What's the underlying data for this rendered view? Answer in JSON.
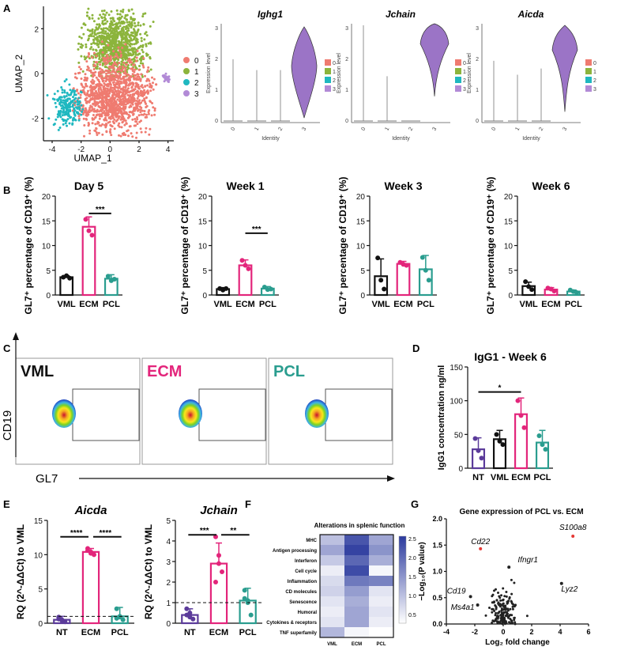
{
  "panels": {
    "a": "A",
    "b": "B",
    "c": "C",
    "d": "D",
    "e": "E",
    "f": "F",
    "g": "G"
  },
  "colors": {
    "vml": "#111111",
    "ecm": "#e3257b",
    "pcl": "#2a9d8f",
    "nt": "#5b3b9a",
    "c0": "#ef7b70",
    "c1": "#8cb43c",
    "c2": "#1fb8c0",
    "c3": "#b28ad6",
    "violet": "#9b74c6"
  },
  "umap": {
    "xlabel": "UMAP_1",
    "ylabel": "UMAP_2",
    "xticks": [
      "-4",
      "-2",
      "0",
      "2",
      "4"
    ],
    "yticks": [
      "2",
      "0",
      "-2"
    ],
    "legend": [
      "0",
      "1",
      "2",
      "3"
    ]
  },
  "violins": [
    {
      "gene": "Ighg1",
      "ylabel": "Expression level",
      "xlabel": "Identity",
      "yticks": [
        "3",
        "2",
        "1",
        "0"
      ],
      "xticks": [
        "0",
        "1",
        "2",
        "3"
      ],
      "legend": [
        "0",
        "1",
        "2",
        "3"
      ]
    },
    {
      "gene": "Jchain",
      "ylabel": "Expression level",
      "xlabel": "Identity",
      "yticks": [
        "3",
        "2",
        "1",
        "0"
      ],
      "xticks": [
        "0",
        "1",
        "2",
        "3"
      ],
      "legend": [
        "0",
        "1",
        "2",
        "3"
      ]
    },
    {
      "gene": "Aicda",
      "ylabel": "Expression level",
      "xlabel": "Identity",
      "yticks": [
        "3",
        "2",
        "1",
        "0"
      ],
      "xticks": [
        "0",
        "1",
        "2",
        "3"
      ],
      "legend": [
        "0",
        "1",
        "2",
        "3"
      ]
    }
  ],
  "chart_data": [
    {
      "type": "bar",
      "panel": "B",
      "title": "Day 5",
      "categories": [
        "VML",
        "ECM",
        "PCL"
      ],
      "values": [
        3.6,
        13.8,
        3.3
      ],
      "ylim": [
        0,
        20
      ],
      "yticks": [
        "0",
        "5",
        "10",
        "15",
        "20"
      ],
      "ylabel_html": "GL7⁺ percentage of CD19⁺ (%)",
      "sig": "***"
    },
    {
      "type": "bar",
      "panel": "B",
      "title": "Week 1",
      "categories": [
        "VML",
        "ECM",
        "PCL"
      ],
      "values": [
        1.2,
        6.0,
        1.3
      ],
      "ylim": [
        0,
        20
      ],
      "yticks": [
        "0",
        "5",
        "10",
        "15",
        "20"
      ],
      "sig": "***"
    },
    {
      "type": "bar",
      "panel": "B",
      "title": "Week 3",
      "categories": [
        "VML",
        "ECM",
        "PCL"
      ],
      "values": [
        3.8,
        6.3,
        5.2
      ],
      "ylim": [
        0,
        20
      ],
      "yticks": [
        "0",
        "5",
        "10",
        "15",
        "20"
      ]
    },
    {
      "type": "bar",
      "panel": "B",
      "title": "Week 6",
      "categories": [
        "VML",
        "ECM",
        "PCL"
      ],
      "values": [
        1.8,
        1.1,
        0.7
      ],
      "ylim": [
        0,
        20
      ],
      "yticks": [
        "0",
        "5",
        "10",
        "15",
        "20"
      ]
    },
    {
      "type": "bar",
      "panel": "D",
      "title": "IgG1 - Week 6",
      "categories": [
        "NT",
        "VML",
        "ECM",
        "PCL"
      ],
      "values": [
        28,
        43,
        80,
        38
      ],
      "ylim": [
        0,
        150
      ],
      "yticks": [
        "0",
        "50",
        "100",
        "150"
      ],
      "ylabel": "IgG1 concentration ng/ml",
      "sig": "*"
    },
    {
      "type": "bar",
      "panel": "E",
      "title": "Aicda",
      "categories": [
        "NT",
        "ECM",
        "PCL"
      ],
      "values": [
        0.5,
        10.4,
        1.0
      ],
      "ylim": [
        0,
        15
      ],
      "yticks": [
        "0",
        "5",
        "10",
        "15"
      ],
      "ylabel": "RQ (2^-ΔΔCt) to VML",
      "sig": [
        "****",
        "****"
      ]
    },
    {
      "type": "bar",
      "panel": "E",
      "title": "Jchain",
      "categories": [
        "NT",
        "ECM",
        "PCL"
      ],
      "values": [
        0.4,
        2.9,
        1.1
      ],
      "ylim": [
        0,
        5
      ],
      "yticks": [
        "0",
        "1",
        "2",
        "3",
        "4",
        "5"
      ],
      "ylabel": "RQ (2^-ΔΔCt) to VML",
      "sig": [
        "***",
        "**"
      ]
    },
    {
      "type": "heatmap",
      "panel": "F",
      "title": "Alterations in splenic function",
      "rows": [
        "MHC",
        "Antigen processing",
        "Interferon",
        "Cell cycle",
        "Inflammation",
        "CD molecules",
        "Senescence",
        "Humoral",
        "Cytokines & receptors",
        "TNF superfamily"
      ],
      "columns": [
        "VML",
        "ECM",
        "PCL"
      ],
      "values": [
        [
          1.2,
          2.4,
          1.5
        ],
        [
          1.5,
          2.6,
          1.7
        ],
        [
          1.1,
          2.2,
          1.4
        ],
        [
          0.7,
          2.5,
          0.6
        ],
        [
          0.9,
          2.0,
          1.9
        ],
        [
          1.0,
          1.6,
          0.8
        ],
        [
          0.8,
          1.4,
          0.7
        ],
        [
          0.7,
          1.5,
          0.8
        ],
        [
          0.8,
          1.5,
          0.7
        ],
        [
          1.3,
          0.6,
          0.5
        ]
      ],
      "colorbar": [
        "2.5",
        "2.0",
        "1.5",
        "1.0",
        "0.5"
      ]
    },
    {
      "type": "scatter",
      "panel": "G",
      "title": "Gene expression of PCL vs. ECM",
      "xlabel": "Log₂ fold change",
      "ylabel": "−Log₁₀(P value)",
      "xlim": [
        -4,
        6
      ],
      "ylim": [
        0,
        2
      ],
      "xticks": [
        "-4",
        "-2",
        "0",
        "2",
        "4",
        "6"
      ],
      "yticks": [
        "0.0",
        "0.5",
        "1.0",
        "1.5",
        "2.0"
      ],
      "labels": [
        {
          "gene": "S100a8",
          "x": 4.9,
          "y": 1.67
        },
        {
          "gene": "Cd22",
          "x": -1.6,
          "y": 1.43
        },
        {
          "gene": "Ifngr1",
          "x": 0.4,
          "y": 1.08
        },
        {
          "gene": "Lyz2",
          "x": 4.1,
          "y": 0.77
        },
        {
          "gene": "Cd19",
          "x": -2.3,
          "y": 0.52
        },
        {
          "gene": "Ms4a1",
          "x": -1.8,
          "y": 0.36
        }
      ]
    }
  ],
  "flow": {
    "xlabel": "GL7",
    "ylabel": "CD19",
    "groups": [
      "VML",
      "ECM",
      "PCL"
    ]
  }
}
